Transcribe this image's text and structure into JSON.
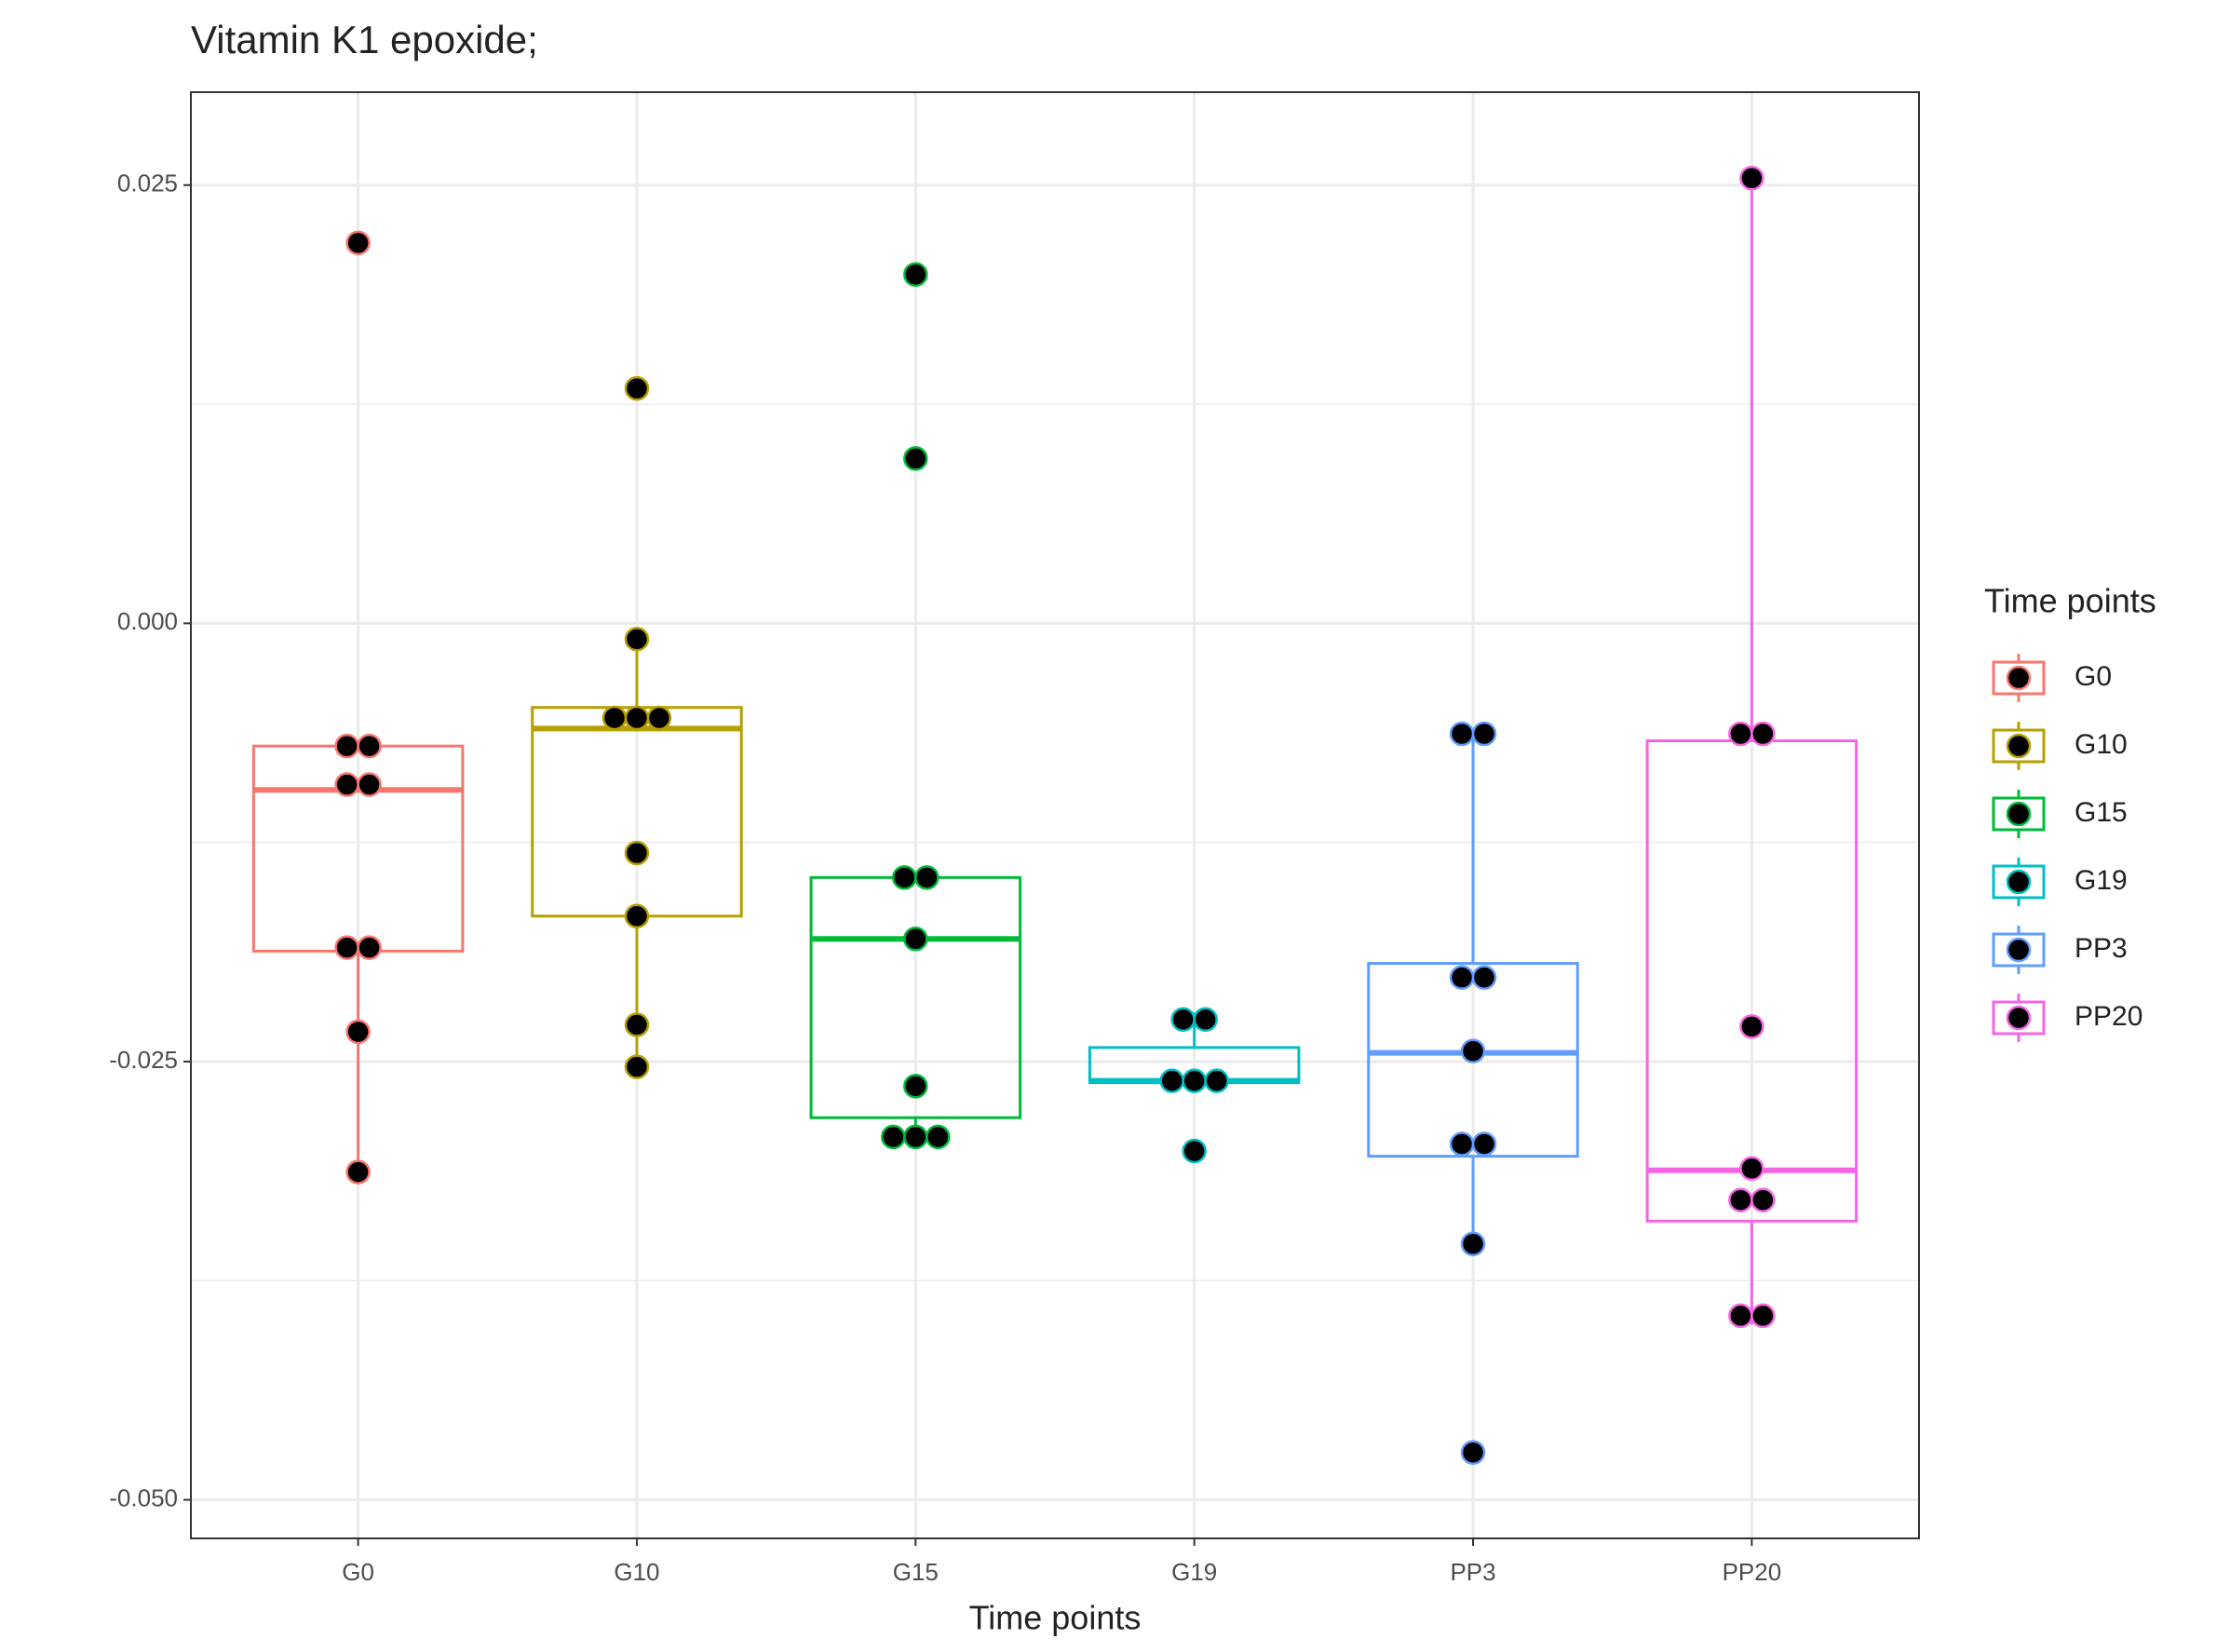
{
  "chart_data": {
    "type": "box",
    "title": "Vitamin K1 epoxide;",
    "x_label": "Time points",
    "legend_title": "Time points",
    "categories": [
      "G0",
      "G10",
      "G15",
      "G19",
      "PP3",
      "PP20"
    ],
    "ylim": [
      -0.0522,
      0.0303
    ],
    "yticks": [
      0.025,
      {
        "value": 0,
        "label": "0.000"
      },
      {
        "value": -0.025,
        "label": "-0.025"
      },
      {
        "value": -0.05,
        "label": "-0.050"
      }
    ],
    "minor_yticks": [
      0.0125,
      -0.0125,
      -0.0375
    ],
    "grid": true,
    "series": [
      {
        "name": "G0",
        "color": "#F8766D",
        "box": {
          "lower": -0.0313,
          "q1": -0.0187,
          "median": -0.0095,
          "q3": -0.007,
          "upper": -0.007
        },
        "points": [
          0.0217,
          -0.007,
          -0.007,
          -0.0092,
          -0.0092,
          -0.0185,
          -0.0185,
          -0.0233,
          -0.0313
        ]
      },
      {
        "name": "G10",
        "color": "#B79F00",
        "box": {
          "lower": -0.0253,
          "q1": -0.0167,
          "median": -0.006,
          "q3": -0.0048,
          "upper": -0.0009
        },
        "points": [
          0.0134,
          -0.0009,
          -0.0054,
          -0.0054,
          -0.0054,
          -0.0131,
          -0.0167,
          -0.0229,
          -0.0253
        ]
      },
      {
        "name": "G15",
        "color": "#00BA38",
        "box": {
          "lower": -0.03,
          "q1": -0.0282,
          "median": -0.018,
          "q3": -0.0145,
          "upper": -0.0145
        },
        "points": [
          0.0199,
          0.0094,
          -0.0145,
          -0.0145,
          -0.018,
          -0.0264,
          -0.0293,
          -0.0293,
          -0.0293
        ]
      },
      {
        "name": "G19",
        "color": "#00BFC4",
        "box": {
          "lower": -0.0262,
          "q1": -0.0262,
          "median": -0.0261,
          "q3": -0.0242,
          "upper": -0.0222
        },
        "points": [
          -0.0226,
          -0.0226,
          -0.0261,
          -0.0261,
          -0.0261,
          -0.0301
        ]
      },
      {
        "name": "PP3",
        "color": "#619CFF",
        "box": {
          "lower": -0.0354,
          "q1": -0.0304,
          "median": -0.0245,
          "q3": -0.0194,
          "upper": -0.0063
        },
        "points": [
          -0.0063,
          -0.0063,
          -0.0202,
          -0.0202,
          -0.0244,
          -0.0297,
          -0.0297,
          -0.0354,
          -0.0473
        ]
      },
      {
        "name": "PP20",
        "color": "#F564E3",
        "box": {
          "lower": -0.04,
          "q1": -0.0341,
          "median": -0.0312,
          "q3": -0.0067,
          "upper": 0.0254
        },
        "points": [
          0.0254,
          -0.0063,
          -0.0063,
          -0.023,
          -0.0311,
          -0.0329,
          -0.0329,
          -0.0395,
          -0.0395
        ]
      }
    ]
  }
}
